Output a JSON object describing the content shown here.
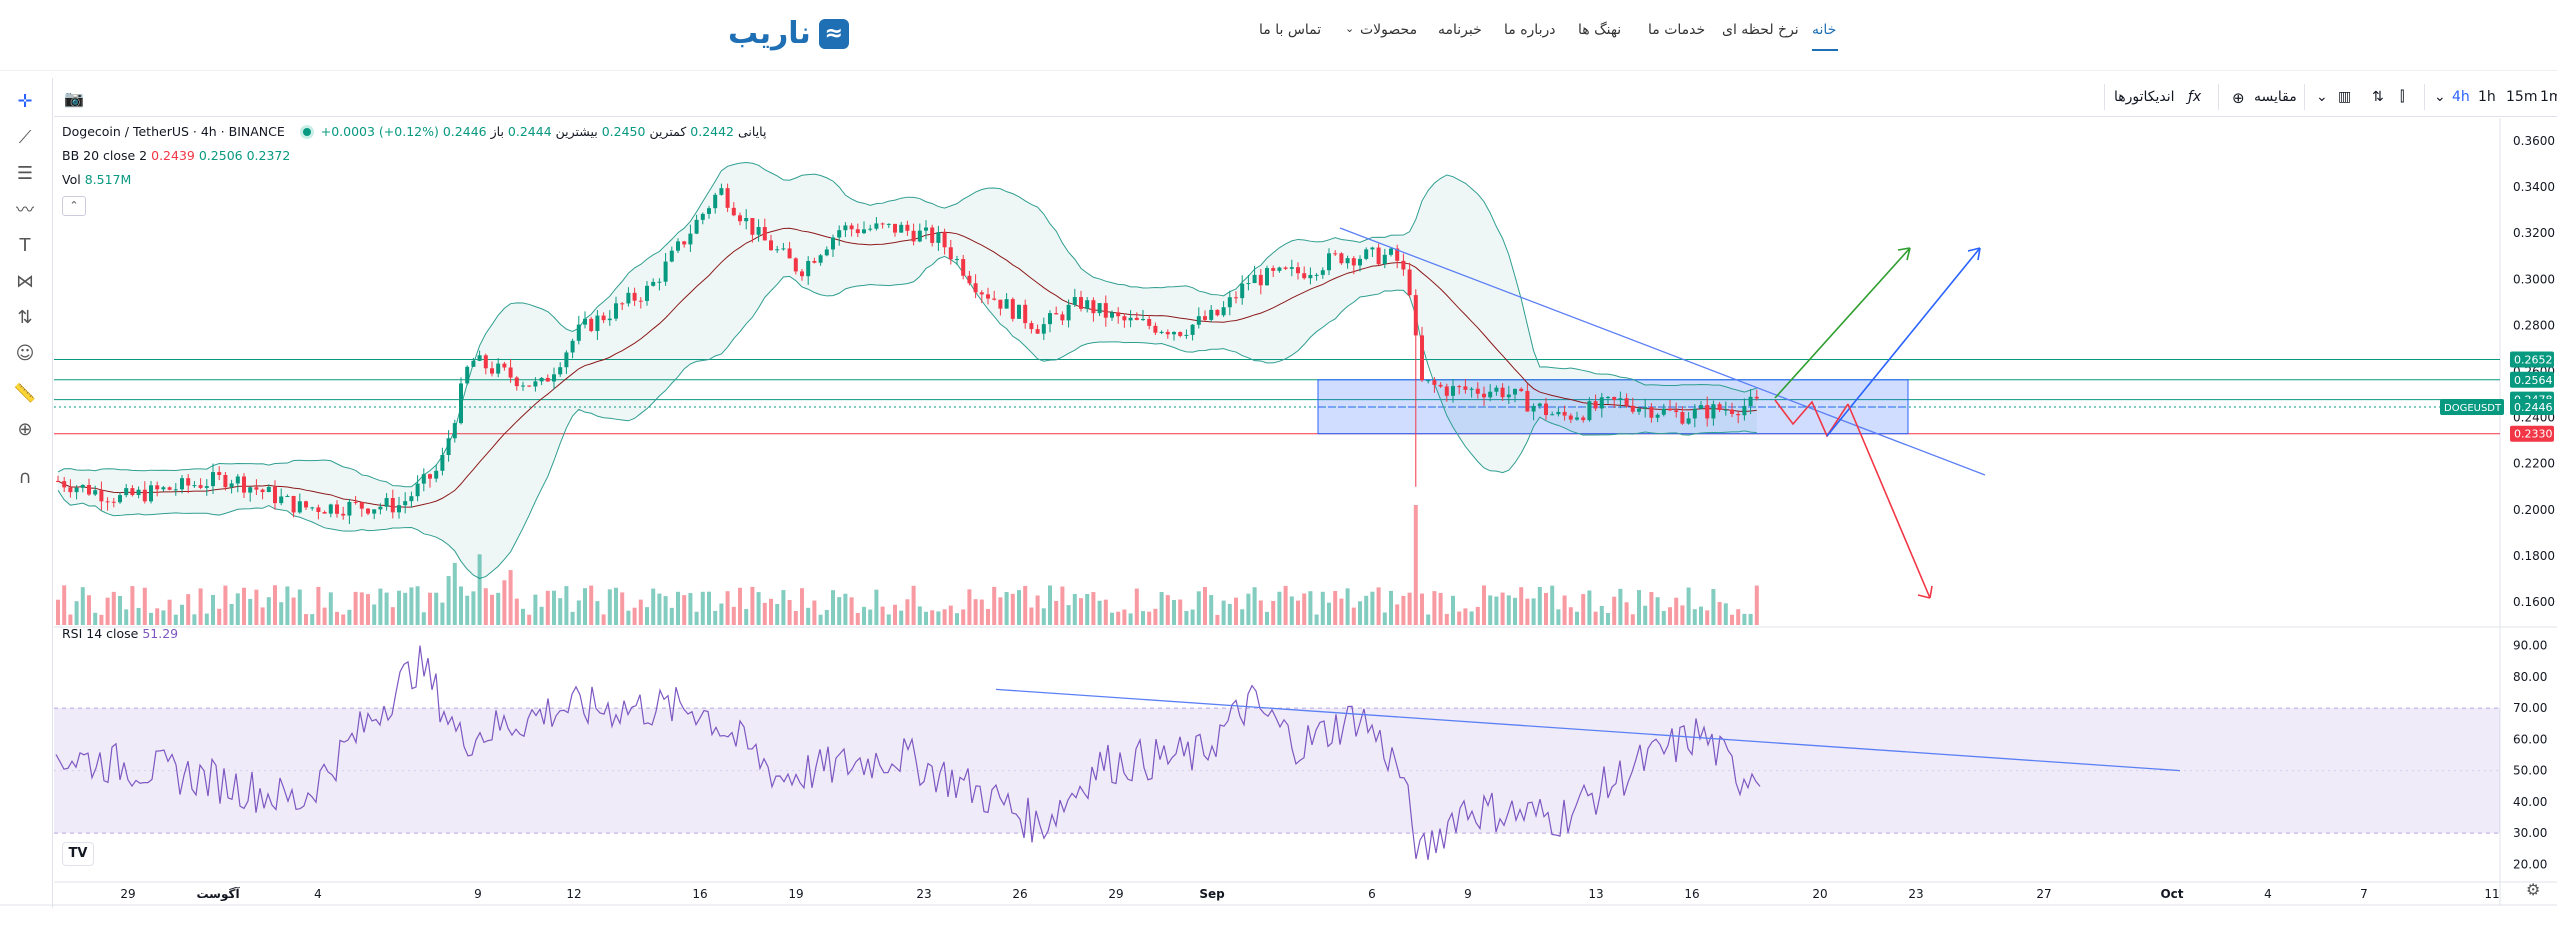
{
  "brand": {
    "logo_text": "ناریب",
    "logo_mark": "≈",
    "color": "#1f6fb5"
  },
  "nav": {
    "items": [
      "خانه",
      "نرخ لحظه ای",
      "خدمات ما",
      "نهنگ ها",
      "درباره ما",
      "خبرنامه",
      "محصولات",
      "تماس با ما"
    ],
    "active": "خانه"
  },
  "toolbar": {
    "intervals": [
      "1m",
      "15m",
      "1h",
      "4h"
    ],
    "active_interval": "4h",
    "compare_label": "مقایسه",
    "indicators_label": "اندیکاتورها"
  },
  "symbol": {
    "name": "Dogecoin / TetherUS · 4h · BINANCE",
    "ohlc": {
      "open_label": "باز",
      "open": "0.2444",
      "high_label": "بیشترین",
      "high": "0.2450",
      "low_label": "کمترین",
      "low": "0.2442",
      "close_label": "پایانی",
      "close": "0.2446",
      "change": "+0.0003 (+0.12%)"
    },
    "tag": "DOGEUSDT"
  },
  "indicators": {
    "bb": {
      "label": "BB 20 close 2",
      "v1": "0.2439",
      "v2": "0.2506",
      "v3": "0.2372"
    },
    "vol": {
      "label": "Vol",
      "value": "8.517M"
    },
    "rsi": {
      "label": "RSI 14 close",
      "value": "51.29"
    }
  },
  "price_axis": [
    "0.3600",
    "0.3400",
    "0.3200",
    "0.3000",
    "0.2800",
    "0.2600",
    "0.2400",
    "0.2200",
    "0.2000",
    "0.1800",
    "0.1600"
  ],
  "price_tags": [
    {
      "value": "0.2652",
      "color": "#089981"
    },
    {
      "value": "0.2564",
      "color": "#089981"
    },
    {
      "value": "0.2478",
      "color": "#089981"
    },
    {
      "value": "0.2446",
      "color": "#089981"
    },
    {
      "value": "0.2330",
      "color": "#f23645"
    }
  ],
  "rsi_axis": [
    "90.00",
    "80.00",
    "70.00",
    "60.00",
    "50.00",
    "40.00",
    "30.00",
    "20.00"
  ],
  "time_axis": [
    "29",
    "آگوست",
    "4",
    "9",
    "12",
    "16",
    "19",
    "23",
    "26",
    "29",
    "Sep",
    "6",
    "9",
    "13",
    "16",
    "20",
    "23",
    "27",
    "Oct",
    "4",
    "7",
    "11"
  ],
  "colors": {
    "up": "#089981",
    "down": "#f23645",
    "bb": "#2f9e90",
    "ma": "#8b1a1a",
    "rsi": "#7e57c2",
    "zone": "#2962ff"
  }
}
